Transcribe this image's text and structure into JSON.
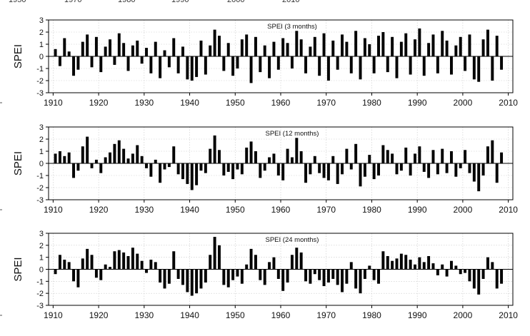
{
  "top_partial_labels": [
    "1950",
    "1970",
    "1980",
    "1990",
    "2000",
    "2010"
  ],
  "chart_data": [
    {
      "type": "bar",
      "title": "SPEI (3 months)",
      "ylabel": "SPEI",
      "xlim": [
        1909,
        2011
      ],
      "ylim": [
        -3,
        3
      ],
      "xticks": [
        "1910",
        "1920",
        "1930",
        "1940",
        "1950",
        "1960",
        "1970",
        "1980",
        "1990",
        "2000",
        "2010"
      ],
      "yticks": [
        "3",
        "2",
        "1",
        "0",
        "-1",
        "-2",
        "-3"
      ],
      "grid": true,
      "x": [
        1910,
        1911,
        1912,
        1913,
        1914,
        1915,
        1916,
        1917,
        1918,
        1919,
        1920,
        1921,
        1922,
        1923,
        1924,
        1925,
        1926,
        1927,
        1928,
        1929,
        1930,
        1931,
        1932,
        1933,
        1934,
        1935,
        1936,
        1937,
        1938,
        1939,
        1940,
        1941,
        1942,
        1943,
        1944,
        1945,
        1946,
        1947,
        1948,
        1949,
        1950,
        1951,
        1952,
        1953,
        1954,
        1955,
        1956,
        1957,
        1958,
        1959,
        1960,
        1961,
        1962,
        1963,
        1964,
        1965,
        1966,
        1967,
        1968,
        1969,
        1970,
        1971,
        1972,
        1973,
        1974,
        1975,
        1976,
        1977,
        1978,
        1979,
        1980,
        1981,
        1982,
        1983,
        1984,
        1985,
        1986,
        1987,
        1988,
        1989,
        1990,
        1991,
        1992,
        1993,
        1994,
        1995,
        1996,
        1997,
        1998,
        1999,
        2000,
        2001,
        2002,
        2003,
        2004,
        2005,
        2006,
        2007,
        2008
      ],
      "values": [
        0.6,
        -0.8,
        1.5,
        0.4,
        -1.6,
        -1.1,
        1.2,
        1.8,
        -0.9,
        1.6,
        -1.3,
        0.8,
        1.4,
        -0.7,
        1.9,
        1.1,
        -1.2,
        0.9,
        1.3,
        -0.6,
        0.7,
        -1.4,
        1.2,
        -1.8,
        0.5,
        -0.9,
        1.5,
        -1.4,
        0.8,
        -1.9,
        -2.0,
        -1.7,
        1.3,
        -1.5,
        0.9,
        2.2,
        1.7,
        -1.2,
        1.1,
        -1.6,
        -1.0,
        1.4,
        1.8,
        -2.2,
        1.6,
        -1.3,
        0.9,
        -1.8,
        1.2,
        -1.1,
        1.5,
        1.1,
        -1.0,
        2.1,
        1.4,
        -1.4,
        0.8,
        1.6,
        -1.6,
        1.9,
        -2.0,
        1.3,
        -1.1,
        1.8,
        1.2,
        -1.4,
        2.1,
        -1.9,
        1.5,
        1.0,
        -1.4,
        1.7,
        2.0,
        -1.3,
        1.6,
        -1.8,
        1.2,
        1.9,
        -1.5,
        1.4,
        2.3,
        -1.6,
        1.1,
        1.8,
        -1.4,
        2.1,
        1.3,
        -1.5,
        0.9,
        1.6,
        -1.2,
        1.8,
        -1.9,
        -2.1,
        1.4,
        2.2,
        -2.0,
        1.7,
        -1.1
      ]
    },
    {
      "type": "bar",
      "title": "SPEI (12 months)",
      "ylabel": "SPEI",
      "xlim": [
        1909,
        2011
      ],
      "ylim": [
        -3,
        3
      ],
      "xticks": [
        "1910",
        "1920",
        "1930",
        "1940",
        "1950",
        "1960",
        "1970",
        "1980",
        "1990",
        "2000",
        "2010"
      ],
      "yticks": [
        "3",
        "2",
        "1",
        "0",
        "-1",
        "-2",
        "-3"
      ],
      "grid": true,
      "x": [
        1910,
        1911,
        1912,
        1913,
        1914,
        1915,
        1916,
        1917,
        1918,
        1919,
        1920,
        1921,
        1922,
        1923,
        1924,
        1925,
        1926,
        1927,
        1928,
        1929,
        1930,
        1931,
        1932,
        1933,
        1934,
        1935,
        1936,
        1937,
        1938,
        1939,
        1940,
        1941,
        1942,
        1943,
        1944,
        1945,
        1946,
        1947,
        1948,
        1949,
        1950,
        1951,
        1952,
        1953,
        1954,
        1955,
        1956,
        1957,
        1958,
        1959,
        1960,
        1961,
        1962,
        1963,
        1964,
        1965,
        1966,
        1967,
        1968,
        1969,
        1970,
        1971,
        1972,
        1973,
        1974,
        1975,
        1976,
        1977,
        1978,
        1979,
        1980,
        1981,
        1982,
        1983,
        1984,
        1985,
        1986,
        1987,
        1988,
        1989,
        1990,
        1991,
        1992,
        1993,
        1994,
        1995,
        1996,
        1997,
        1998,
        1999,
        2000,
        2001,
        2002,
        2003,
        2004,
        2005,
        2006,
        2007,
        2008
      ],
      "values": [
        0.8,
        1.0,
        0.6,
        0.9,
        -1.2,
        -0.6,
        1.4,
        2.2,
        -0.4,
        0.3,
        -0.8,
        0.5,
        0.9,
        1.6,
        1.9,
        1.2,
        0.4,
        0.8,
        1.5,
        0.6,
        -0.4,
        -1.1,
        0.3,
        -1.6,
        -0.5,
        -0.3,
        1.4,
        -0.9,
        -1.3,
        -1.7,
        -2.2,
        -1.8,
        -0.6,
        -0.8,
        1.2,
        2.3,
        1.1,
        -1.0,
        -0.7,
        -1.3,
        -0.5,
        -0.9,
        1.3,
        1.8,
        1.0,
        -1.2,
        -0.6,
        0.5,
        0.8,
        -1.0,
        -1.4,
        1.2,
        0.5,
        2.1,
        1.0,
        -1.6,
        -0.9,
        0.6,
        -0.8,
        -1.2,
        -1.4,
        0.6,
        -1.7,
        -0.9,
        1.2,
        -0.5,
        1.6,
        -1.9,
        -1.1,
        0.7,
        -1.3,
        -1.0,
        1.5,
        1.1,
        0.8,
        -0.9,
        -0.6,
        1.3,
        -1.0,
        0.8,
        1.4,
        -0.7,
        -1.2,
        1.1,
        -0.9,
        1.2,
        -0.8,
        1.0,
        -1.1,
        -0.4,
        1.1,
        -0.8,
        -1.5,
        -2.3,
        -1.0,
        1.4,
        1.9,
        -1.6,
        0.9
      ]
    },
    {
      "type": "bar",
      "title": "SPEI (24 months)",
      "ylabel": "SPEI",
      "xlim": [
        1909,
        2011
      ],
      "ylim": [
        -3,
        3
      ],
      "xticks": [
        "1910",
        "1920",
        "1930",
        "1940",
        "1950",
        "1960",
        "1970",
        "1980",
        "1990",
        "2000",
        "2010"
      ],
      "yticks": [
        "3",
        "2",
        "1",
        "0",
        "-1",
        "-2",
        "-3"
      ],
      "grid": true,
      "x": [
        1910,
        1911,
        1912,
        1913,
        1914,
        1915,
        1916,
        1917,
        1918,
        1919,
        1920,
        1921,
        1922,
        1923,
        1924,
        1925,
        1926,
        1927,
        1928,
        1929,
        1930,
        1931,
        1932,
        1933,
        1934,
        1935,
        1936,
        1937,
        1938,
        1939,
        1940,
        1941,
        1942,
        1943,
        1944,
        1945,
        1946,
        1947,
        1948,
        1949,
        1950,
        1951,
        1952,
        1953,
        1954,
        1955,
        1956,
        1957,
        1958,
        1959,
        1960,
        1961,
        1962,
        1963,
        1964,
        1965,
        1966,
        1967,
        1968,
        1969,
        1970,
        1971,
        1972,
        1973,
        1974,
        1975,
        1976,
        1977,
        1978,
        1979,
        1980,
        1981,
        1982,
        1983,
        1984,
        1985,
        1986,
        1987,
        1988,
        1989,
        1990,
        1991,
        1992,
        1993,
        1994,
        1995,
        1996,
        1997,
        1998,
        1999,
        2000,
        2001,
        2002,
        2003,
        2004,
        2005,
        2006,
        2007,
        2008
      ],
      "values": [
        -0.4,
        1.2,
        0.8,
        0.6,
        -1.0,
        -1.5,
        0.9,
        1.7,
        1.2,
        -0.7,
        -0.9,
        0.4,
        0.2,
        1.5,
        1.6,
        1.4,
        1.1,
        1.8,
        1.3,
        0.7,
        -0.3,
        0.8,
        0.6,
        -1.1,
        -1.6,
        -1.2,
        1.5,
        -0.8,
        -1.3,
        -1.9,
        -2.2,
        -2.0,
        -1.6,
        -1.1,
        1.2,
        2.7,
        2.0,
        -1.3,
        -1.5,
        -0.9,
        -0.6,
        -1.2,
        0.4,
        1.7,
        1.2,
        -0.9,
        -1.3,
        0.6,
        1.0,
        -0.8,
        -1.8,
        -1.1,
        1.2,
        1.8,
        1.4,
        -1.0,
        -1.2,
        -0.4,
        -0.9,
        -1.4,
        -1.1,
        -0.8,
        -1.3,
        -1.9,
        -1.2,
        0.6,
        -1.6,
        -2.0,
        -0.8,
        0.3,
        -0.9,
        -1.2,
        1.5,
        1.1,
        0.7,
        0.9,
        1.3,
        1.2,
        0.8,
        0.4,
        1.0,
        0.6,
        1.1,
        0.5,
        -0.5,
        0.4,
        -0.6,
        0.7,
        0.3,
        -0.4,
        -0.3,
        -1.0,
        -1.6,
        -2.1,
        -0.8,
        1.0,
        0.6,
        -1.6,
        -1.2
      ]
    }
  ]
}
